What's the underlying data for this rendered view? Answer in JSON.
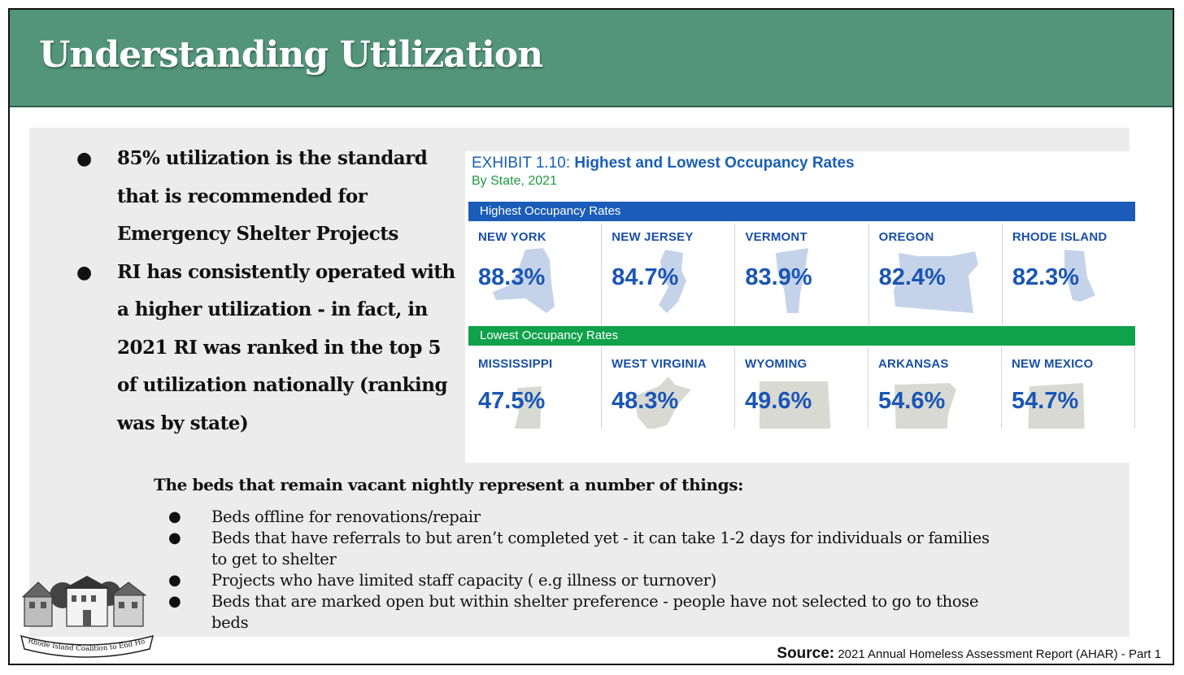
{
  "slide": {
    "title": "Understanding Utilization"
  },
  "bullets": [
    "85% utilization is the standard that is recommended for Emergency Shelter Projects",
    "RI has consistently operated with a higher utilization - in fact, in 2021 RI was ranked in the top 5 of utilization nationally (ranking was by state)"
  ],
  "bullet_glyph": "●",
  "exhibit": {
    "label": "EXHIBIT 1.10:",
    "title": "Highest and Lowest Occupancy Rates",
    "subtitle": "By State, 2021",
    "highest_header": "Highest Occupancy Rates",
    "lowest_header": "Lowest Occupancy Rates",
    "colors": {
      "blue": "#1a5cb8",
      "green": "#10a24a",
      "map_high": "#c5d3ea",
      "map_low": "#d9d9d4"
    },
    "highest": [
      {
        "state": "NEW YORK",
        "rate": "88.3%"
      },
      {
        "state": "NEW JERSEY",
        "rate": "84.7%"
      },
      {
        "state": "VERMONT",
        "rate": "83.9%"
      },
      {
        "state": "OREGON",
        "rate": "82.4%"
      },
      {
        "state": "RHODE ISLAND",
        "rate": "82.3%"
      }
    ],
    "lowest": [
      {
        "state": "MISSISSIPPI",
        "rate": "47.5%"
      },
      {
        "state": "WEST VIRGINIA",
        "rate": "48.3%"
      },
      {
        "state": "WYOMING",
        "rate": "49.6%"
      },
      {
        "state": "ARKANSAS",
        "rate": "54.6%"
      },
      {
        "state": "NEW MEXICO",
        "rate": "54.7%"
      }
    ]
  },
  "vacant": {
    "heading": "The beds that remain vacant nightly represent a number of things:",
    "items": [
      "Beds offline for renovations/repair",
      "Beds that have referrals to but aren’t completed yet - it can take 1-2 days for individuals or families to get to shelter",
      "Projects who have limited staff capacity ( e.g illness or turnover)",
      "Beds that are marked open but within shelter preference - people have not selected to go to those beds"
    ]
  },
  "logo": {
    "text": "Rhode Island Coalition to End Homelessness"
  },
  "source": {
    "label": "Source:",
    "text": "2021 Annual Homeless Assessment Report (AHAR) - Part 1"
  }
}
